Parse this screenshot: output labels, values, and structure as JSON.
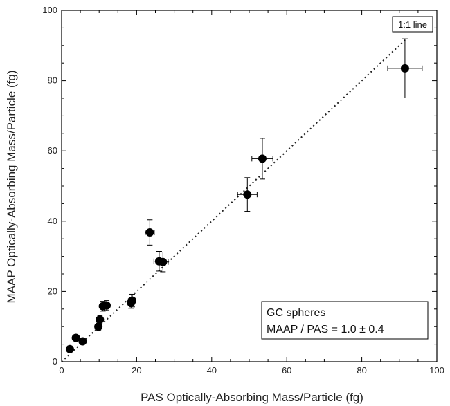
{
  "chart_data": {
    "type": "scatter",
    "xlabel": "PAS Optically-Absorbing Mass/Particle (fg)",
    "ylabel": "MAAP Optically-Absorbing Mass/Particle (fg)",
    "xlim": [
      0,
      100
    ],
    "ylim": [
      0,
      100
    ],
    "xticks": [
      0,
      20,
      40,
      60,
      80,
      100
    ],
    "yticks": [
      0,
      20,
      40,
      60,
      80,
      100
    ],
    "grid": false,
    "reference_line": {
      "label": "1:1 line",
      "slope": 1,
      "intercept": 0,
      "style": "dotted"
    },
    "annotation": {
      "line1": "GC spheres",
      "line2": "MAAP / PAS = 1.0 ± 0.4"
    },
    "points": [
      {
        "x": 2.2,
        "y": 3.6,
        "xerr": 0,
        "yerr": 0
      },
      {
        "x": 3.8,
        "y": 6.8,
        "xerr": 0,
        "yerr": 0
      },
      {
        "x": 5.6,
        "y": 5.8,
        "xerr": 0,
        "yerr": 0
      },
      {
        "x": 9.8,
        "y": 10.0,
        "xerr": 0,
        "yerr": 1.0
      },
      {
        "x": 10.2,
        "y": 12.0,
        "xerr": 0,
        "yerr": 1.2
      },
      {
        "x": 11.0,
        "y": 15.8,
        "xerr": 0.6,
        "yerr": 1.4
      },
      {
        "x": 12.0,
        "y": 16.0,
        "xerr": 0.6,
        "yerr": 1.4
      },
      {
        "x": 18.5,
        "y": 16.8,
        "xerr": 0.8,
        "yerr": 1.6
      },
      {
        "x": 18.8,
        "y": 17.4,
        "xerr": 0.8,
        "yerr": 1.8
      },
      {
        "x": 23.5,
        "y": 36.8,
        "xerr": 1.2,
        "yerr": 3.6
      },
      {
        "x": 26.0,
        "y": 28.6,
        "xerr": 1.4,
        "yerr": 2.8
      },
      {
        "x": 27.0,
        "y": 28.4,
        "xerr": 1.4,
        "yerr": 2.8
      },
      {
        "x": 49.5,
        "y": 47.6,
        "xerr": 2.6,
        "yerr": 4.8
      },
      {
        "x": 53.5,
        "y": 57.8,
        "xerr": 2.8,
        "yerr": 5.8
      },
      {
        "x": 91.5,
        "y": 83.5,
        "xerr": 4.6,
        "yerr": 8.4
      }
    ]
  }
}
